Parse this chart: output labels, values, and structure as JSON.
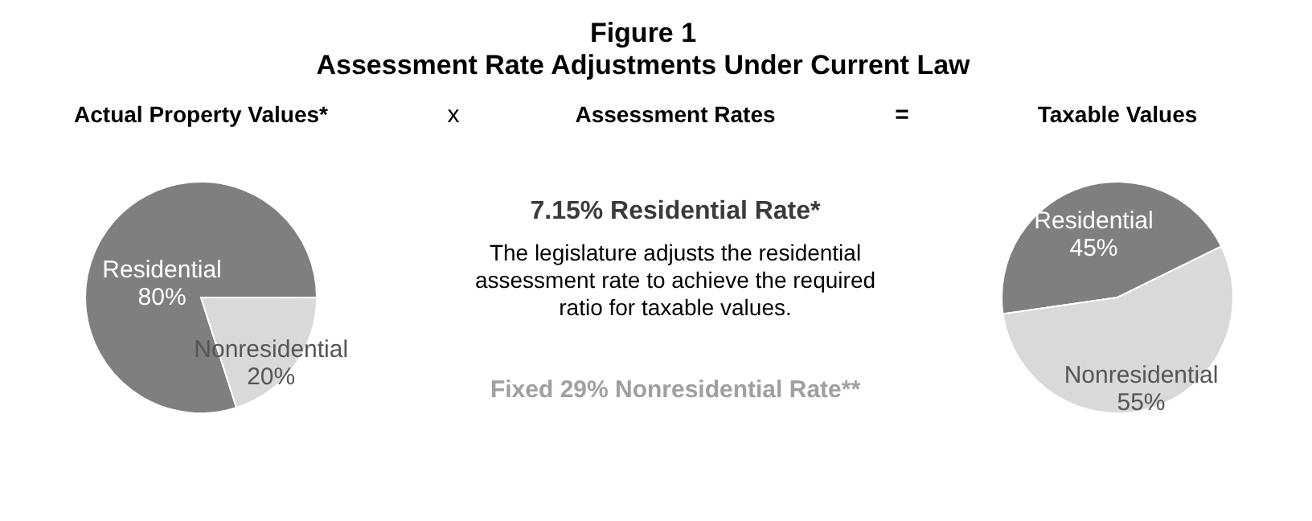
{
  "chart_data": [
    {
      "type": "other",
      "title": "Figure 1",
      "subtitle": "Assessment Rate Adjustments Under Current Law"
    },
    {
      "type": "pie",
      "title": "Actual Property Values*",
      "categories": [
        "Residential",
        "Nonresidential"
      ],
      "values": [
        80,
        20
      ],
      "colors": [
        "#7f7f7f",
        "#d9d9d9"
      ],
      "value_labels": [
        "80%",
        "20%"
      ]
    },
    {
      "type": "other",
      "title": "Assessment Rates",
      "annotations": [
        "x",
        "=",
        "7.15% Residential Rate*",
        "The legislature adjusts the residential assessment rate to achieve the required ratio for taxable values.",
        "Fixed 29% Nonresidential Rate**"
      ]
    },
    {
      "type": "pie",
      "title": "Taxable Values",
      "categories": [
        "Residential",
        "Nonresidential"
      ],
      "values": [
        45,
        55
      ],
      "colors": [
        "#7f7f7f",
        "#d9d9d9"
      ],
      "value_labels": [
        "45%",
        "55%"
      ]
    }
  ]
}
